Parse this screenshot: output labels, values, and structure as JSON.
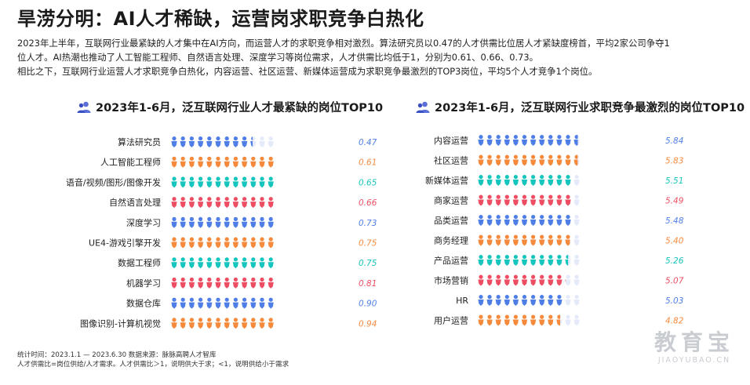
{
  "page": {
    "title": "旱涝分明：AI人才稀缺，运营岗求职竞争白热化",
    "intro": [
      "2023年上半年，互联网行业最紧缺的人才集中在AI方向，而运营人才的求职竞争相对激烈。算法研究员以0.47的人才供需比位居人才紧缺度榜首，平均2家公司争夺1",
      "位人才。AI热潮也推动了人工智能工程师、自然语言处理、深度学习等岗位需求，人才供需比均低于1，分别为0.61、0.66、0.73。",
      "相比之下，互联网行业运营人才求职竞争白热化，内容运营、社区运营、新媒体运营成为求职竞争最激烈的TOP3岗位，平均5个人才竞争1个岗位。"
    ],
    "footer": [
      "统计时间：2023.1.1 — 2023.6.30   数据来源：脉脉高聘人才智库",
      "人才供需比=岗位供给/人才需求。人才供需比＞1，说明供大于求；<1，说明供给小于需求"
    ],
    "watermark": {
      "cn": "教育宝",
      "en": "JIAOYUBAO.CN"
    },
    "palette": [
      "#4f7fe6",
      "#f58a3d",
      "#16c5bd",
      "#ee4e63"
    ],
    "empty_color": "#e4eafa",
    "icon": "users-icon"
  },
  "chart_data": [
    {
      "type": "bar",
      "title": "2023年1-6月，泛互联网行业人才最紧缺的岗位TOP10",
      "unit_per_icon": 0.05,
      "max_icons": 12,
      "categories": [
        "算法研究员",
        "人工智能工程师",
        "语音/视频/图形/图像开发",
        "自然语言处理",
        "深度学习",
        "UE4-游戏引擎开发",
        "数据工程师",
        "机器学习",
        "数据仓库",
        "图像识别-计算机视觉"
      ],
      "values": [
        0.47,
        0.61,
        0.65,
        0.66,
        0.73,
        0.75,
        0.75,
        0.81,
        0.9,
        0.94
      ],
      "labels": [
        "0.47",
        "0.61",
        "0.65",
        "0.66",
        "0.73",
        "0.75",
        "0.75",
        "0.81",
        "0.90",
        "0.94"
      ]
    },
    {
      "type": "bar",
      "title": "2023年1-6月，泛互联网行业求职竞争最激烈的岗位TOP10",
      "unit_per_icon": 0.5,
      "max_icons": 12,
      "categories": [
        "内容运营",
        "社区运营",
        "新媒体运营",
        "商家运营",
        "品类运营",
        "商务经理",
        "产品运营",
        "市场营销",
        "HR",
        "用户运营"
      ],
      "values": [
        5.84,
        5.83,
        5.51,
        5.49,
        5.48,
        5.4,
        5.26,
        5.07,
        5.03,
        4.82
      ],
      "labels": [
        "5.84",
        "5.83",
        "5.51",
        "5.49",
        "5.48",
        "5.40",
        "5.26",
        "5.07",
        "5.03",
        "4.82"
      ]
    }
  ]
}
